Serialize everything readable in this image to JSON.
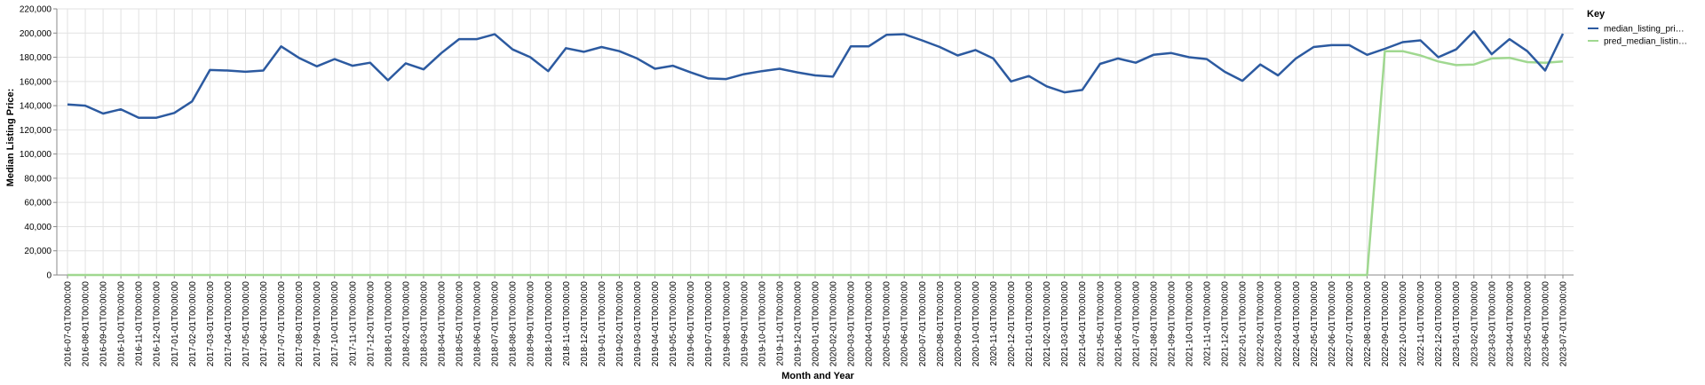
{
  "chart_data": {
    "type": "line",
    "title": "",
    "xlabel": "Month and Year",
    "ylabel": "Median Listing Price:",
    "ylim": [
      0,
      220000
    ],
    "y_ticks": [
      0,
      20000,
      40000,
      60000,
      80000,
      100000,
      120000,
      140000,
      160000,
      180000,
      200000,
      220000
    ],
    "y_tick_labels": [
      "0",
      "20,000",
      "40,000",
      "60,000",
      "80,000",
      "100,000",
      "120,000",
      "140,000",
      "160,000",
      "180,000",
      "200,000",
      "220,000"
    ],
    "grid": true,
    "legend": {
      "title": "Key",
      "placement": "right"
    },
    "x": [
      "2016-07-01T00:00:00",
      "2016-08-01T00:00:00",
      "2016-09-01T00:00:00",
      "2016-10-01T00:00:00",
      "2016-11-01T00:00:00",
      "2016-12-01T00:00:00",
      "2017-01-01T00:00:00",
      "2017-02-01T00:00:00",
      "2017-03-01T00:00:00",
      "2017-04-01T00:00:00",
      "2017-05-01T00:00:00",
      "2017-06-01T00:00:00",
      "2017-07-01T00:00:00",
      "2017-08-01T00:00:00",
      "2017-09-01T00:00:00",
      "2017-10-01T00:00:00",
      "2017-11-01T00:00:00",
      "2017-12-01T00:00:00",
      "2018-01-01T00:00:00",
      "2018-02-01T00:00:00",
      "2018-03-01T00:00:00",
      "2018-04-01T00:00:00",
      "2018-05-01T00:00:00",
      "2018-06-01T00:00:00",
      "2018-07-01T00:00:00",
      "2018-08-01T00:00:00",
      "2018-09-01T00:00:00",
      "2018-10-01T00:00:00",
      "2018-11-01T00:00:00",
      "2018-12-01T00:00:00",
      "2019-01-01T00:00:00",
      "2019-02-01T00:00:00",
      "2019-03-01T00:00:00",
      "2019-04-01T00:00:00",
      "2019-05-01T00:00:00",
      "2019-06-01T00:00:00",
      "2019-07-01T00:00:00",
      "2019-08-01T00:00:00",
      "2019-09-01T00:00:00",
      "2019-10-01T00:00:00",
      "2019-11-01T00:00:00",
      "2019-12-01T00:00:00",
      "2020-01-01T00:00:00",
      "2020-02-01T00:00:00",
      "2020-03-01T00:00:00",
      "2020-04-01T00:00:00",
      "2020-05-01T00:00:00",
      "2020-06-01T00:00:00",
      "2020-07-01T00:00:00",
      "2020-08-01T00:00:00",
      "2020-09-01T00:00:00",
      "2020-10-01T00:00:00",
      "2020-11-01T00:00:00",
      "2020-12-01T00:00:00",
      "2021-01-01T00:00:00",
      "2021-02-01T00:00:00",
      "2021-03-01T00:00:00",
      "2021-04-01T00:00:00",
      "2021-05-01T00:00:00",
      "2021-06-01T00:00:00",
      "2021-07-01T00:00:00",
      "2021-08-01T00:00:00",
      "2021-09-01T00:00:00",
      "2021-10-01T00:00:00",
      "2021-11-01T00:00:00",
      "2021-12-01T00:00:00",
      "2022-01-01T00:00:00",
      "2022-02-01T00:00:00",
      "2022-03-01T00:00:00",
      "2022-04-01T00:00:00",
      "2022-05-01T00:00:00",
      "2022-06-01T00:00:00",
      "2022-07-01T00:00:00",
      "2022-08-01T00:00:00",
      "2022-09-01T00:00:00",
      "2022-10-01T00:00:00",
      "2022-11-01T00:00:00",
      "2022-12-01T00:00:00",
      "2023-01-01T00:00:00",
      "2023-02-01T00:00:00",
      "2023-03-01T00:00:00",
      "2023-04-01T00:00:00",
      "2023-05-01T00:00:00",
      "2023-06-01T00:00:00",
      "2023-07-01T00:00:00"
    ],
    "series": [
      {
        "name": "median_listing_pri…",
        "color": "#2c5aa0",
        "values": [
          141000,
          140000,
          133500,
          137000,
          130000,
          130000,
          134000,
          143500,
          169500,
          169000,
          168000,
          169000,
          189000,
          179500,
          172500,
          178500,
          173000,
          175500,
          161000,
          175000,
          170000,
          183500,
          195000,
          195000,
          199000,
          186500,
          180000,
          168500,
          187500,
          184500,
          188500,
          185000,
          179000,
          170500,
          173000,
          167500,
          162500,
          162000,
          166000,
          168500,
          170500,
          167500,
          165000,
          164000,
          189000,
          189000,
          198500,
          199000,
          194000,
          188500,
          181500,
          186000,
          179000,
          160000,
          164500,
          156000,
          151000,
          153000,
          174500,
          179000,
          175500,
          182000,
          183500,
          180000,
          178500,
          168000,
          160500,
          174000,
          165000,
          179000,
          188500,
          190000,
          190000,
          182000,
          187000,
          192500,
          194000,
          180000,
          186500,
          201500,
          182500,
          195000,
          185000,
          169000,
          199500
        ]
      },
      {
        "name": "pred_median_listin…",
        "color": "#a0d890",
        "values": [
          0,
          0,
          0,
          0,
          0,
          0,
          0,
          0,
          0,
          0,
          0,
          0,
          0,
          0,
          0,
          0,
          0,
          0,
          0,
          0,
          0,
          0,
          0,
          0,
          0,
          0,
          0,
          0,
          0,
          0,
          0,
          0,
          0,
          0,
          0,
          0,
          0,
          0,
          0,
          0,
          0,
          0,
          0,
          0,
          0,
          0,
          0,
          0,
          0,
          0,
          0,
          0,
          0,
          0,
          0,
          0,
          0,
          0,
          0,
          0,
          0,
          0,
          0,
          0,
          0,
          0,
          0,
          0,
          0,
          0,
          0,
          0,
          0,
          0,
          185000,
          185000,
          181500,
          176500,
          173500,
          174000,
          179000,
          179500,
          176000,
          175500,
          176500
        ]
      }
    ]
  }
}
